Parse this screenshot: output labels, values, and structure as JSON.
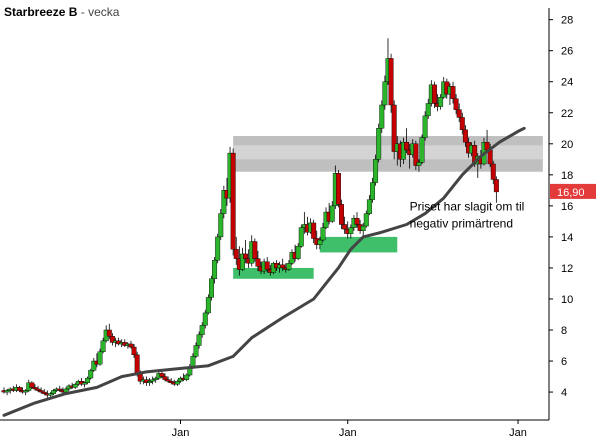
{
  "chart_data": {
    "type": "candlestick",
    "title": "Starbreeze B",
    "title_separator": "-",
    "period_label": "vecka",
    "ylim": [
      2.2,
      28.3
    ],
    "y_ticks": [
      4,
      6,
      8,
      10,
      12,
      14,
      16,
      18,
      20,
      22,
      24,
      26,
      28
    ],
    "x_range": [
      0,
      176
    ],
    "x_tick_labels": [
      {
        "label": "Jan",
        "week": 57
      },
      {
        "label": "Jan",
        "week": 111
      },
      {
        "label": "Jan",
        "week": 166
      }
    ],
    "candle_width": 2.2,
    "ohlc": [
      [
        4.1,
        4.3,
        3.9,
        4.0
      ],
      [
        4.0,
        4.2,
        3.8,
        4.1
      ],
      [
        4.1,
        4.3,
        3.9,
        4.2
      ],
      [
        4.2,
        4.4,
        4.0,
        4.1
      ],
      [
        4.1,
        4.5,
        4.0,
        4.3
      ],
      [
        4.3,
        4.4,
        4.0,
        4.1
      ],
      [
        4.1,
        4.3,
        3.9,
        4.0
      ],
      [
        4.0,
        4.2,
        3.8,
        4.1
      ],
      [
        4.1,
        4.8,
        4.0,
        4.6
      ],
      [
        4.6,
        4.7,
        4.2,
        4.3
      ],
      [
        4.3,
        4.5,
        4.1,
        4.2
      ],
      [
        4.2,
        4.4,
        4.0,
        4.1
      ],
      [
        4.1,
        4.3,
        3.9,
        4.0
      ],
      [
        4.0,
        4.2,
        3.8,
        3.9
      ],
      [
        3.9,
        4.1,
        3.6,
        3.8
      ],
      [
        3.8,
        4.0,
        3.7,
        3.9
      ],
      [
        3.9,
        4.2,
        3.8,
        4.1
      ],
      [
        4.1,
        4.3,
        4.0,
        4.2
      ],
      [
        4.2,
        4.4,
        4.0,
        4.1
      ],
      [
        4.1,
        4.3,
        3.9,
        4.0
      ],
      [
        4.0,
        4.3,
        3.9,
        4.2
      ],
      [
        4.2,
        4.5,
        4.1,
        4.4
      ],
      [
        4.4,
        4.6,
        4.2,
        4.3
      ],
      [
        4.3,
        4.6,
        4.2,
        4.5
      ],
      [
        4.5,
        4.8,
        4.4,
        4.7
      ],
      [
        4.7,
        4.9,
        4.4,
        4.5
      ],
      [
        4.5,
        4.7,
        4.3,
        4.6
      ],
      [
        4.6,
        5.0,
        4.5,
        4.9
      ],
      [
        4.9,
        5.5,
        4.8,
        5.4
      ],
      [
        5.4,
        6.2,
        5.3,
        6.0
      ],
      [
        6.0,
        6.5,
        5.6,
        5.8
      ],
      [
        5.8,
        6.8,
        5.7,
        6.6
      ],
      [
        6.6,
        7.5,
        6.5,
        7.3
      ],
      [
        7.3,
        8.3,
        7.2,
        8.0
      ],
      [
        8.0,
        8.4,
        7.4,
        7.6
      ],
      [
        7.6,
        7.8,
        7.0,
        7.2
      ],
      [
        7.2,
        7.5,
        6.9,
        7.3
      ],
      [
        7.3,
        7.5,
        7.0,
        7.1
      ],
      [
        7.1,
        7.4,
        6.9,
        7.2
      ],
      [
        7.2,
        7.4,
        6.9,
        7.0
      ],
      [
        7.0,
        7.2,
        6.8,
        7.1
      ],
      [
        7.1,
        7.3,
        6.8,
        6.9
      ],
      [
        6.9,
        7.1,
        6.2,
        6.4
      ],
      [
        6.4,
        6.6,
        5.0,
        5.2
      ],
      [
        5.2,
        5.4,
        4.5,
        4.7
      ],
      [
        4.7,
        5.0,
        4.5,
        4.8
      ],
      [
        4.8,
        5.0,
        4.4,
        4.6
      ],
      [
        4.6,
        4.9,
        4.4,
        4.7
      ],
      [
        4.7,
        5.0,
        4.5,
        4.8
      ],
      [
        4.8,
        5.0,
        4.6,
        4.9
      ],
      [
        4.9,
        5.3,
        4.8,
        5.2
      ],
      [
        5.2,
        5.4,
        4.9,
        5.0
      ],
      [
        5.0,
        5.2,
        4.7,
        4.8
      ],
      [
        4.8,
        5.0,
        4.6,
        4.7
      ],
      [
        4.7,
        4.9,
        4.5,
        4.6
      ],
      [
        4.6,
        4.8,
        4.4,
        4.5
      ],
      [
        4.5,
        4.8,
        4.4,
        4.7
      ],
      [
        4.7,
        5.0,
        4.6,
        4.9
      ],
      [
        4.9,
        5.2,
        4.7,
        4.8
      ],
      [
        4.8,
        5.2,
        4.7,
        5.1
      ],
      [
        5.1,
        5.8,
        5.0,
        5.6
      ],
      [
        5.6,
        6.5,
        5.5,
        6.3
      ],
      [
        6.3,
        7.2,
        6.2,
        7.0
      ],
      [
        7.0,
        7.9,
        6.8,
        7.7
      ],
      [
        7.7,
        8.5,
        7.5,
        8.3
      ],
      [
        8.3,
        9.3,
        8.1,
        9.1
      ],
      [
        9.1,
        10.3,
        9.0,
        10.1
      ],
      [
        10.1,
        11.5,
        9.9,
        11.3
      ],
      [
        11.3,
        12.7,
        11.0,
        12.5
      ],
      [
        12.5,
        14.2,
        12.3,
        14.0
      ],
      [
        14.0,
        15.8,
        13.8,
        15.5
      ],
      [
        15.5,
        17.3,
        15.2,
        17.0
      ],
      [
        17.0,
        17.8,
        16.0,
        16.5
      ],
      [
        16.5,
        19.8,
        16.2,
        19.4
      ],
      [
        19.4,
        19.7,
        12.8,
        13.2
      ],
      [
        13.2,
        14.0,
        12.2,
        12.6
      ],
      [
        12.6,
        13.4,
        11.5,
        11.9
      ],
      [
        11.9,
        13.3,
        11.8,
        12.9
      ],
      [
        12.9,
        13.8,
        12.3,
        12.6
      ],
      [
        12.6,
        13.2,
        12.0,
        12.3
      ],
      [
        12.3,
        14.1,
        12.1,
        13.7
      ],
      [
        13.7,
        13.9,
        12.4,
        12.6
      ],
      [
        12.6,
        13.1,
        11.8,
        12.1
      ],
      [
        12.1,
        12.4,
        11.6,
        11.8
      ],
      [
        11.8,
        12.6,
        11.6,
        12.4
      ],
      [
        12.4,
        12.7,
        11.7,
        11.9
      ],
      [
        11.9,
        12.2,
        11.5,
        11.7
      ],
      [
        11.7,
        12.4,
        11.6,
        12.3
      ],
      [
        12.3,
        12.5,
        11.8,
        12.0
      ],
      [
        12.0,
        12.4,
        11.7,
        12.2
      ],
      [
        12.2,
        12.6,
        11.8,
        12.0
      ],
      [
        12.0,
        12.3,
        11.7,
        11.9
      ],
      [
        11.9,
        12.5,
        11.8,
        12.3
      ],
      [
        12.3,
        13.2,
        12.2,
        13.0
      ],
      [
        13.0,
        13.5,
        12.4,
        12.6
      ],
      [
        12.6,
        13.6,
        12.5,
        13.4
      ],
      [
        13.4,
        14.8,
        13.3,
        14.6
      ],
      [
        14.6,
        15.6,
        14.2,
        14.8
      ],
      [
        14.8,
        15.3,
        14.1,
        14.3
      ],
      [
        14.3,
        15.2,
        14.2,
        14.9
      ],
      [
        14.9,
        15.1,
        13.6,
        13.9
      ],
      [
        13.9,
        14.4,
        13.2,
        13.5
      ],
      [
        13.5,
        14.0,
        13.2,
        13.8
      ],
      [
        13.8,
        14.9,
        13.7,
        14.6
      ],
      [
        14.6,
        15.9,
        14.5,
        15.6
      ],
      [
        15.6,
        16.2,
        14.8,
        15.0
      ],
      [
        15.0,
        16.3,
        14.9,
        16.0
      ],
      [
        16.0,
        18.6,
        15.8,
        18.1
      ],
      [
        18.1,
        18.3,
        15.9,
        16.1
      ],
      [
        16.1,
        16.4,
        14.5,
        14.8
      ],
      [
        14.8,
        15.3,
        14.2,
        14.5
      ],
      [
        14.5,
        15.0,
        13.9,
        14.2
      ],
      [
        14.2,
        14.8,
        13.9,
        14.6
      ],
      [
        14.6,
        15.4,
        14.4,
        15.2
      ],
      [
        15.2,
        15.6,
        14.6,
        14.8
      ],
      [
        14.8,
        15.1,
        14.2,
        14.4
      ],
      [
        14.4,
        14.9,
        13.9,
        14.7
      ],
      [
        14.7,
        15.7,
        14.6,
        15.5
      ],
      [
        15.5,
        16.7,
        15.4,
        16.4
      ],
      [
        16.4,
        17.8,
        16.2,
        17.5
      ],
      [
        17.5,
        19.3,
        17.3,
        19.0
      ],
      [
        19.0,
        21.3,
        18.8,
        21.0
      ],
      [
        21.0,
        22.8,
        20.7,
        22.5
      ],
      [
        22.5,
        24.4,
        22.2,
        24.0
      ],
      [
        24.0,
        26.8,
        23.8,
        25.5
      ],
      [
        25.5,
        25.8,
        22.0,
        22.5
      ],
      [
        22.5,
        22.8,
        19.0,
        19.5
      ],
      [
        19.5,
        20.5,
        18.6,
        20.0
      ],
      [
        20.0,
        20.2,
        18.5,
        19.0
      ],
      [
        19.0,
        20.4,
        18.7,
        20.1
      ],
      [
        20.1,
        21.0,
        19.4,
        19.6
      ],
      [
        19.6,
        20.0,
        18.4,
        19.3
      ],
      [
        19.3,
        20.3,
        19.1,
        20.0
      ],
      [
        20.0,
        20.2,
        18.3,
        18.6
      ],
      [
        18.6,
        19.0,
        18.2,
        18.8
      ],
      [
        18.8,
        20.6,
        18.7,
        20.4
      ],
      [
        20.4,
        22.1,
        20.2,
        21.8
      ],
      [
        21.8,
        22.9,
        21.6,
        22.6
      ],
      [
        22.6,
        24.1,
        22.4,
        23.8
      ],
      [
        23.8,
        24.0,
        22.3,
        22.6
      ],
      [
        22.6,
        23.2,
        22.1,
        22.4
      ],
      [
        22.4,
        23.2,
        22.2,
        23.0
      ],
      [
        23.0,
        24.3,
        22.9,
        24.0
      ],
      [
        24.0,
        24.2,
        22.9,
        23.2
      ],
      [
        23.2,
        23.9,
        22.5,
        23.7
      ],
      [
        23.7,
        24.0,
        22.6,
        22.9
      ],
      [
        22.9,
        23.2,
        21.9,
        22.2
      ],
      [
        22.2,
        22.6,
        21.4,
        21.7
      ],
      [
        21.7,
        22.0,
        20.6,
        20.9
      ],
      [
        20.9,
        21.2,
        19.8,
        20.1
      ],
      [
        20.1,
        20.4,
        19.1,
        19.4
      ],
      [
        19.4,
        20.1,
        19.2,
        19.9
      ],
      [
        19.9,
        20.2,
        18.5,
        18.7
      ],
      [
        18.7,
        19.4,
        17.8,
        19.2
      ],
      [
        19.2,
        19.6,
        18.4,
        18.7
      ],
      [
        18.7,
        20.4,
        18.6,
        20.1
      ],
      [
        20.1,
        20.9,
        19.4,
        19.6
      ],
      [
        19.6,
        20.0,
        18.5,
        18.7
      ],
      [
        18.7,
        18.9,
        17.4,
        17.7
      ],
      [
        17.7,
        17.9,
        16.2,
        16.9
      ]
    ],
    "moving_average": {
      "color": "#444444",
      "points": [
        [
          0,
          2.5
        ],
        [
          10,
          3.3
        ],
        [
          20,
          3.9
        ],
        [
          30,
          4.3
        ],
        [
          38,
          5.0
        ],
        [
          46,
          5.3
        ],
        [
          56,
          5.5
        ],
        [
          66,
          5.7
        ],
        [
          74,
          6.3
        ],
        [
          80,
          7.5
        ],
        [
          90,
          8.8
        ],
        [
          100,
          10.0
        ],
        [
          104,
          11.0
        ],
        [
          108,
          12.0
        ],
        [
          112,
          13.2
        ],
        [
          116,
          14.0
        ],
        [
          122,
          14.3
        ],
        [
          130,
          14.8
        ],
        [
          136,
          15.5
        ],
        [
          142,
          16.5
        ],
        [
          148,
          18.0
        ],
        [
          154,
          19.2
        ],
        [
          160,
          20.1
        ],
        [
          166,
          20.8
        ],
        [
          168,
          21.0
        ]
      ]
    },
    "resistance_zone": {
      "y_low": 18.2,
      "y_high": 20.5,
      "x_start": 74,
      "x_end": 174,
      "color": "#bfbfbf",
      "inner_band": [
        19.0,
        19.9
      ],
      "inner_color": "#d4d4d4"
    },
    "support_zones": [
      {
        "y_low": 11.3,
        "y_high": 12.0,
        "x_start": 74,
        "x_end": 100,
        "color": "#3fbf6a"
      },
      {
        "y_low": 13.0,
        "y_high": 14.0,
        "x_start": 102,
        "x_end": 127,
        "color": "#3fbf6a"
      }
    ],
    "annotation": {
      "lines": [
        "Priset har slagit om til",
        "negativ primärtrend"
      ],
      "anchor_week": 131,
      "anchor_value": 15.7
    },
    "last_price": {
      "label": "16,90",
      "value": 16.9,
      "color": "#e33a3a"
    },
    "up_color": "#2bb52b",
    "down_color": "#c40000",
    "wick_color": "#000000",
    "axis_color": "#000000"
  }
}
